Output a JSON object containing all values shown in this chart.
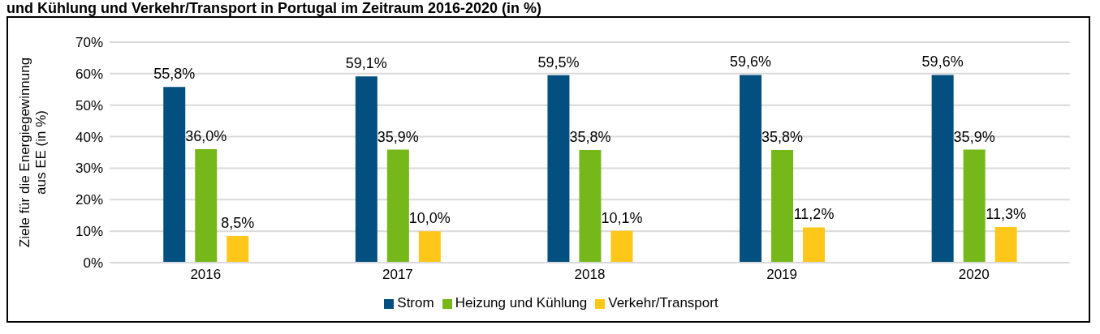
{
  "chart_data": {
    "type": "bar",
    "title": "und Kühlung und Verkehr/Transport in Portugal im Zeitraum 2016-2020 (in %)",
    "ylabel": "Ziele für die Energiegewinnung aus EE (in %)",
    "categories": [
      "2016",
      "2017",
      "2018",
      "2019",
      "2020"
    ],
    "series": [
      {
        "name": "Strom",
        "color": "#024f80",
        "values": [
          55.8,
          59.1,
          59.5,
          59.6,
          59.6
        ],
        "value_labels": [
          "55,8%",
          "59,1%",
          "59,5%",
          "59,6%",
          "59,6%"
        ]
      },
      {
        "name": "Heizung und Kühlung",
        "color": "#76b81a",
        "values": [
          36.0,
          35.9,
          35.8,
          35.8,
          35.9
        ],
        "value_labels": [
          "36,0%",
          "35,9%",
          "35,8%",
          "35,8%",
          "35,9%"
        ]
      },
      {
        "name": "Verkehr/Transport",
        "color": "#ffc719",
        "values": [
          8.5,
          10.0,
          10.1,
          11.2,
          11.3
        ],
        "value_labels": [
          "8,5%",
          "10,0%",
          "10,1%",
          "11,2%",
          "11,3%"
        ]
      }
    ],
    "ylim": [
      0,
      70
    ],
    "yticks": [
      {
        "value": 0,
        "label": "0%"
      },
      {
        "value": 10,
        "label": "10%"
      },
      {
        "value": 20,
        "label": "20%"
      },
      {
        "value": 30,
        "label": "30%"
      },
      {
        "value": 40,
        "label": "40%"
      },
      {
        "value": 50,
        "label": "50%"
      },
      {
        "value": 60,
        "label": "60%"
      },
      {
        "value": 70,
        "label": "70%"
      }
    ],
    "grid": "y",
    "legend": "bottom"
  }
}
